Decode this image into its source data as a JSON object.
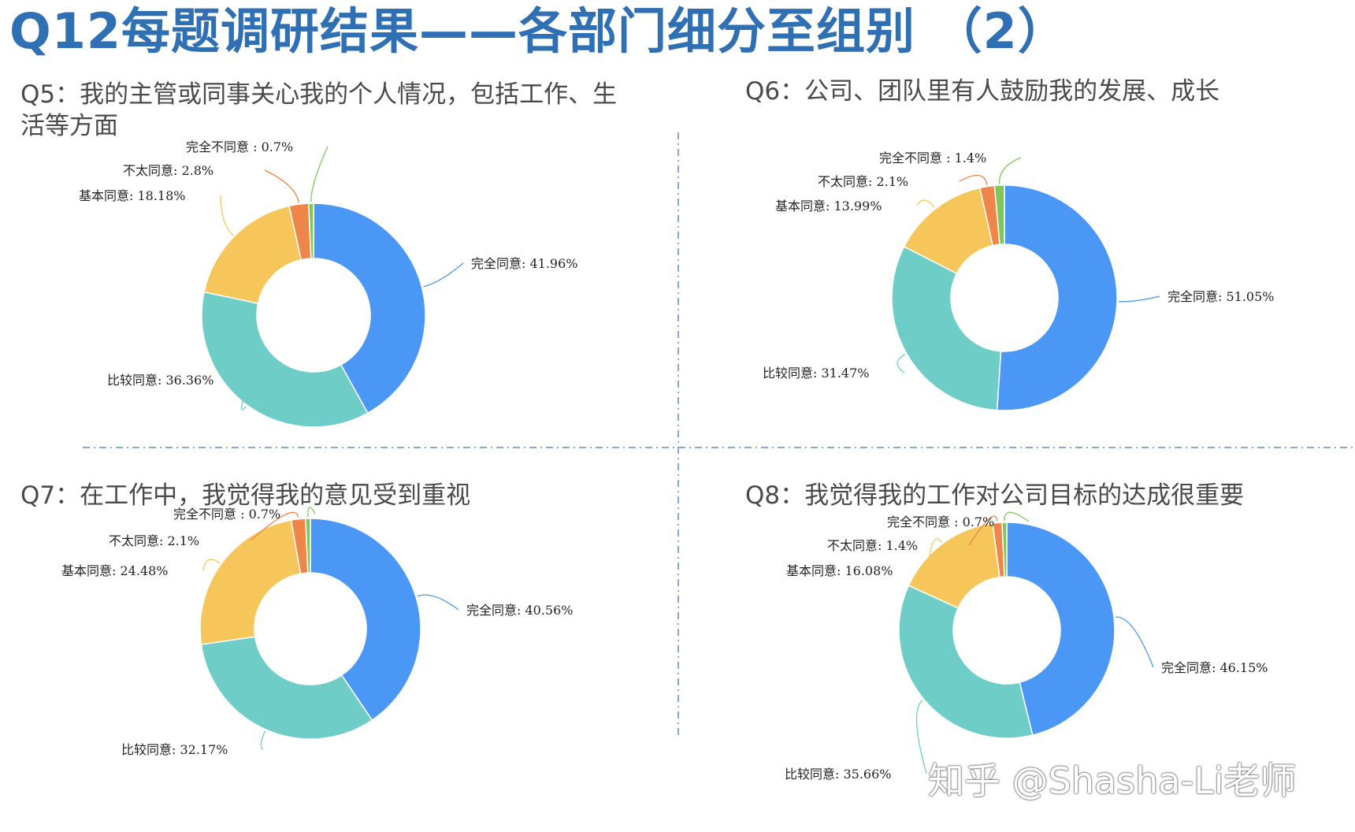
{
  "page": {
    "title": "Q12每题调研结果——各部门细分至组别 （2）",
    "watermark": "知乎 @Shasha-Li老师"
  },
  "palette": {
    "完全同意": "#4a97f5",
    "比较同意": "#6ecdc7",
    "基本同意": "#f6c65a",
    "不太同意": "#ee8549",
    "完全不同意": "#7fc75a"
  },
  "chart_data": [
    {
      "type": "pie",
      "title": "Q5：我的主管或同事关心我的个人情况，包括工作、生活等方面",
      "slices": [
        {
          "name": "完全同意",
          "value": 41.96,
          "label": "完全同意: 41.96%"
        },
        {
          "name": "比较同意",
          "value": 36.36,
          "label": "比较同意: 36.36%"
        },
        {
          "name": "基本同意",
          "value": 18.18,
          "label": "基本同意: 18.18%"
        },
        {
          "name": "不太同意",
          "value": 2.8,
          "label": "不太同意: 2.8%"
        },
        {
          "name": "完全不同意",
          "value": 0.7,
          "label": "完全不同意 : 0.7%"
        }
      ]
    },
    {
      "type": "pie",
      "title": "Q6：公司、团队里有人鼓励我的发展、成长",
      "slices": [
        {
          "name": "完全同意",
          "value": 51.05,
          "label": "完全同意: 51.05%"
        },
        {
          "name": "比较同意",
          "value": 31.47,
          "label": "比较同意: 31.47%"
        },
        {
          "name": "基本同意",
          "value": 13.99,
          "label": "基本同意: 13.99%"
        },
        {
          "name": "不太同意",
          "value": 2.1,
          "label": "不太同意: 2.1%"
        },
        {
          "name": "完全不同意",
          "value": 1.4,
          "label": "完全不同意 : 1.4%"
        }
      ]
    },
    {
      "type": "pie",
      "title": "Q7：在工作中，我觉得我的意见受到重视",
      "slices": [
        {
          "name": "完全同意",
          "value": 40.56,
          "label": "完全同意: 40.56%"
        },
        {
          "name": "比较同意",
          "value": 32.17,
          "label": "比较同意: 32.17%"
        },
        {
          "name": "基本同意",
          "value": 24.48,
          "label": "基本同意: 24.48%"
        },
        {
          "name": "不太同意",
          "value": 2.1,
          "label": "不太同意: 2.1%"
        },
        {
          "name": "完全不同意",
          "value": 0.7,
          "label": "完全不同意 : 0.7%"
        }
      ]
    },
    {
      "type": "pie",
      "title": "Q8：我觉得我的工作对公司目标的达成很重要",
      "slices": [
        {
          "name": "完全同意",
          "value": 46.15,
          "label": "完全同意: 46.15%"
        },
        {
          "name": "比较同意",
          "value": 35.66,
          "label": "比较同意: 35.66%"
        },
        {
          "name": "基本同意",
          "value": 16.08,
          "label": "基本同意: 16.08%"
        },
        {
          "name": "不太同意",
          "value": 1.4,
          "label": "不太同意: 1.4%"
        },
        {
          "name": "完全不同意",
          "value": 0.7,
          "label": "完全不同意 : 0.7%"
        }
      ]
    }
  ]
}
